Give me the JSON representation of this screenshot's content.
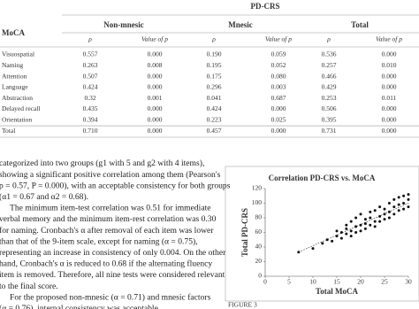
{
  "table": {
    "title": "PD-CRS",
    "row_header": "MoCA",
    "groups": [
      "Non-mnesic",
      "Mnesic",
      "Total"
    ],
    "subheaders": [
      "ρ",
      "Value of p",
      "ρ",
      "Value of p",
      "ρ",
      "Value of p"
    ],
    "rows": [
      [
        "Visuospatial",
        "0.557",
        "0.000",
        "0.190",
        "0.059",
        "0.536",
        "0.000"
      ],
      [
        "Naming",
        "0.263",
        "0.008",
        "0.195",
        "0.052",
        "0.257",
        "0.010"
      ],
      [
        "Attention",
        "0.507",
        "0.000",
        "0.175",
        "0.080",
        "0.466",
        "0.000"
      ],
      [
        "Language",
        "0.424",
        "0.000",
        "0.296",
        "0.003",
        "0.429",
        "0.000"
      ],
      [
        "Abstraction",
        "0.32",
        "0.001",
        "0.041",
        "0.687",
        "0.253",
        "0.011"
      ],
      [
        "Delayed recall",
        "0.435",
        "0.000",
        "0.424",
        "0.000",
        "0.506",
        "0.000"
      ],
      [
        "Orientation",
        "0.394",
        "0.000",
        "0.223",
        "0.025",
        "0.395",
        "0.000"
      ],
      [
        "Total",
        "0.710",
        "0.000",
        "0.457",
        "0.000",
        "0.731",
        "0.000"
      ]
    ]
  },
  "body": {
    "lines": [
      "categorized into two groups (g1 with 5 and g2 with 4 items),",
      "showing a significant positive correlation among them (Pearson's",
      "ρ = 0.57, P = 0.000), with an acceptable consistency for both groups",
      "(α1 = 0.67 and α2 = 0.68).",
      "The minimum item-test correlation was 0.51 for immediate",
      "verbal memory and the minimum item-rest correlation was 0.30",
      "for naming. Cronbach's α after removal of each item was lower",
      "than that of the 9-item scale, except for naming (α = 0.75),",
      "representing an increase in consistency of only 0.004. On the other",
      "hand, Cronbach's α is reduced to 0.68 if the alternating fluency",
      "item is removed. Therefore, all nine tests were considered relevant",
      "to the final score.",
      "For the proposed non-mnesic (α = 0.71) and mnesic factors",
      "(α = 0.76), internal consistency was acceptable."
    ]
  },
  "figure_label": "FIGURE 3",
  "chart_data": {
    "type": "scatter",
    "title": "Correlation PD-CRS vs. MoCA",
    "x_label": "Total MoCA",
    "y_label": "Total PD-CRS",
    "xlim": [
      0,
      30
    ],
    "ylim": [
      0,
      120
    ],
    "xticks": [
      0,
      5,
      10,
      15,
      20,
      25,
      30
    ],
    "yticks": [
      0,
      20,
      40,
      60,
      80,
      100,
      120
    ],
    "x": [
      7,
      10,
      12,
      13,
      14,
      15,
      15,
      16,
      16,
      17,
      17,
      17,
      18,
      18,
      18,
      19,
      19,
      19,
      20,
      20,
      20,
      21,
      21,
      21,
      22,
      22,
      22,
      23,
      23,
      23,
      24,
      24,
      24,
      25,
      25,
      25,
      26,
      26,
      26,
      27,
      27,
      27,
      28,
      28,
      28,
      29,
      29,
      29,
      30,
      30,
      30
    ],
    "series": [
      {
        "color": "#111111",
        "values": [
          33,
          38,
          45,
          50,
          48,
          55,
          62,
          52,
          60,
          58,
          65,
          70,
          55,
          62,
          75,
          60,
          68,
          80,
          62,
          70,
          85,
          65,
          72,
          78,
          70,
          80,
          88,
          68,
          75,
          90,
          75,
          82,
          95,
          78,
          85,
          92,
          80,
          88,
          100,
          85,
          95,
          105,
          90,
          98,
          108,
          92,
          100,
          110,
          95,
          105,
          112
        ]
      }
    ],
    "trendline": {
      "x": [
        7,
        30
      ],
      "y": [
        33,
        100
      ]
    }
  }
}
